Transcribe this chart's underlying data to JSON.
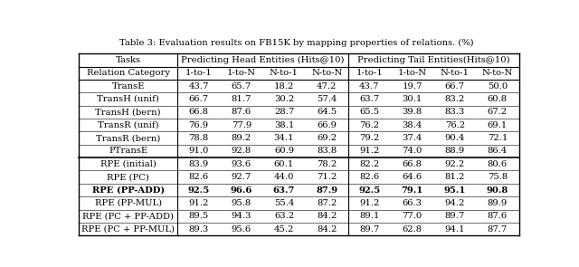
{
  "title": "Table 3: Evaluation results on FB15K by mapping properties of relations. (%)",
  "rows": [
    [
      "Tasks",
      "Predicting Head Entities (Hits@10)",
      "",
      "",
      "",
      "Predicting Tail Entities(Hits@10)",
      "",
      "",
      ""
    ],
    [
      "Relation Category",
      "1-to-1",
      "1-to-N",
      "N-to-1",
      "N-to-N",
      "1-to-1",
      "1-to-N",
      "N-to-1",
      "N-to-N"
    ],
    [
      "TransE",
      "43.7",
      "65.7",
      "18.2",
      "47.2",
      "43.7",
      "19.7",
      "66.7",
      "50.0"
    ],
    [
      "TransH (unif)",
      "66.7",
      "81.7",
      "30.2",
      "57.4",
      "63.7",
      "30.1",
      "83.2",
      "60.8"
    ],
    [
      "TransH (bern)",
      "66.8",
      "87.6",
      "28.7",
      "64.5",
      "65.5",
      "39.8",
      "83.3",
      "67.2"
    ],
    [
      "TransR (unif)",
      "76.9",
      "77.9",
      "38.1",
      "66.9",
      "76.2",
      "38.4",
      "76.2",
      "69.1"
    ],
    [
      "TransR (bern)",
      "78.8",
      "89.2",
      "34.1",
      "69.2",
      "79.2",
      "37.4",
      "90.4",
      "72.1"
    ],
    [
      "PTransE",
      "91.0",
      "92.8",
      "60.9",
      "83.8",
      "91.2",
      "74.0",
      "88.9",
      "86.4"
    ],
    [
      "RPE (initial)",
      "83.9",
      "93.6",
      "60.1",
      "78.2",
      "82.2",
      "66.8",
      "92.2",
      "80.6"
    ],
    [
      "RPE (PC)",
      "82.6",
      "92.7",
      "44.0",
      "71.2",
      "82.6",
      "64.6",
      "81.2",
      "75.8"
    ],
    [
      "RPE (PP-ADD)",
      "92.5",
      "96.6",
      "63.7",
      "87.9",
      "92.5",
      "79.1",
      "95.1",
      "90.8"
    ],
    [
      "RPE (PP-MUL)",
      "91.2",
      "95.8",
      "55.4",
      "87.2",
      "91.2",
      "66.3",
      "94.2",
      "89.9"
    ],
    [
      "RPE (PC + PP-ADD)",
      "89.5",
      "94.3",
      "63.2",
      "84.2",
      "89.1",
      "77.0",
      "89.7",
      "87.6"
    ],
    [
      "RPE (PC + PP-MUL)",
      "89.3",
      "95.6",
      "45.2",
      "84.2",
      "89.7",
      "62.8",
      "94.1",
      "87.7"
    ]
  ],
  "bold_row_idx": 10,
  "thick_sep_after_row": 7,
  "col_widths_rel": [
    2.3,
    1.0,
    1.0,
    1.0,
    1.0,
    1.0,
    1.0,
    1.0,
    1.0
  ],
  "bg_color": "#ffffff",
  "text_color": "#000000",
  "font_size": 7.2,
  "title_font_size": 7.2
}
